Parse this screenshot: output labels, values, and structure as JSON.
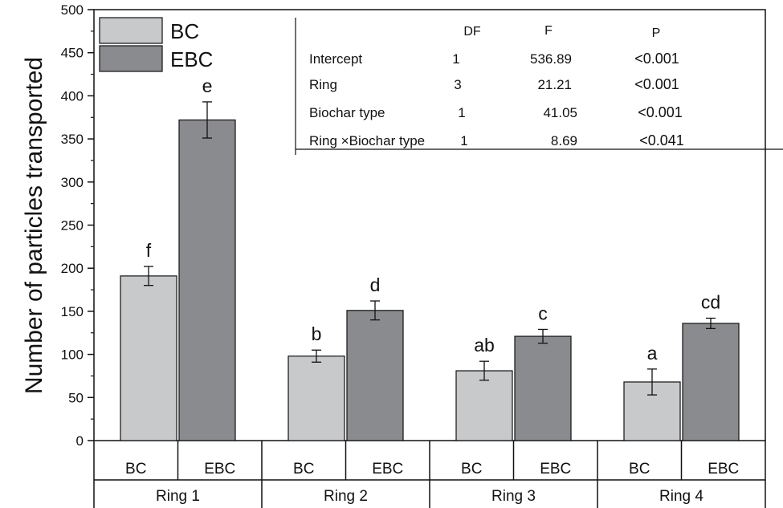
{
  "chart_data": {
    "type": "bar",
    "ylabel": "Number of particles transported",
    "ylim": [
      0,
      500
    ],
    "yticks": [
      0,
      50,
      100,
      150,
      200,
      250,
      300,
      350,
      400,
      450,
      500
    ],
    "groups": [
      "Ring 1",
      "Ring 2",
      "Ring 3",
      "Ring 4"
    ],
    "series": [
      {
        "name": "BC",
        "color": "#c8c9cb",
        "values": [
          191,
          98,
          81,
          68
        ],
        "errors": [
          11,
          7,
          11,
          15
        ],
        "letters": [
          "f",
          "b",
          "ab",
          "a"
        ]
      },
      {
        "name": "EBC",
        "color": "#8a8b8e",
        "values": [
          372,
          151,
          121,
          136
        ],
        "errors": [
          21,
          11,
          8,
          6
        ],
        "letters": [
          "e",
          "d",
          "c",
          "cd"
        ]
      }
    ],
    "legend": [
      {
        "label": "BC",
        "color": "#c8c9cb"
      },
      {
        "label": "EBC",
        "color": "#8a8b8e"
      }
    ],
    "stats_table": {
      "columns": [
        "DF",
        "F",
        "P"
      ],
      "rows": [
        {
          "label": "Intercept",
          "df": "1",
          "f": "536.89",
          "p": "<0.001"
        },
        {
          "label": "Ring",
          "df": "3",
          "f": "21.21",
          "p": "<0.001"
        },
        {
          "label": "Biochar type",
          "df": "1",
          "f": "41.05",
          "p": "<0.001"
        },
        {
          "label": "Ring ×Biochar type",
          "df": "1",
          "f": "8.69",
          "p": "<0.041"
        }
      ]
    }
  }
}
